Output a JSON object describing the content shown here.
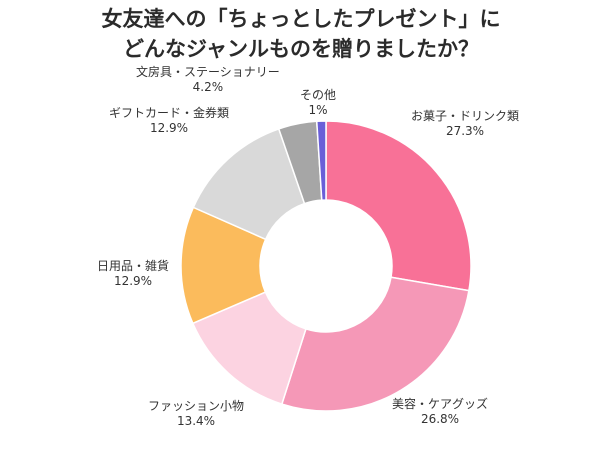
{
  "chart_data": {
    "type": "pie",
    "donut": true,
    "title_lines": [
      "女友達への「ちょっとしたプレゼント」に",
      "どんなジャンルものを贈りましたか？"
    ],
    "slices": [
      {
        "name": "お菓子・ドリンク類",
        "value": 27.3,
        "label": "27.3%",
        "color": "#f87197"
      },
      {
        "name": "美容・ケアグッズ",
        "value": 26.8,
        "label": "26.8%",
        "color": "#f598b7"
      },
      {
        "name": "ファッション小物",
        "value": 13.4,
        "label": "13.4%",
        "color": "#fcd3e1"
      },
      {
        "name": "日用品・雑貨",
        "value": 12.9,
        "label": "12.9%",
        "color": "#fbbb5c"
      },
      {
        "name": "ギフトカード・金券類",
        "value": 12.9,
        "label": "12.9%",
        "color": "#d9d9d9"
      },
      {
        "name": "文房具・ステーショナリー",
        "value": 4.2,
        "label": "4.2%",
        "color": "#a6a6a6"
      },
      {
        "name": "その他",
        "value": 1,
        "label": "1%",
        "color": "#6a5fd8"
      }
    ],
    "start_angle_deg": 0,
    "direction": "clockwise"
  }
}
